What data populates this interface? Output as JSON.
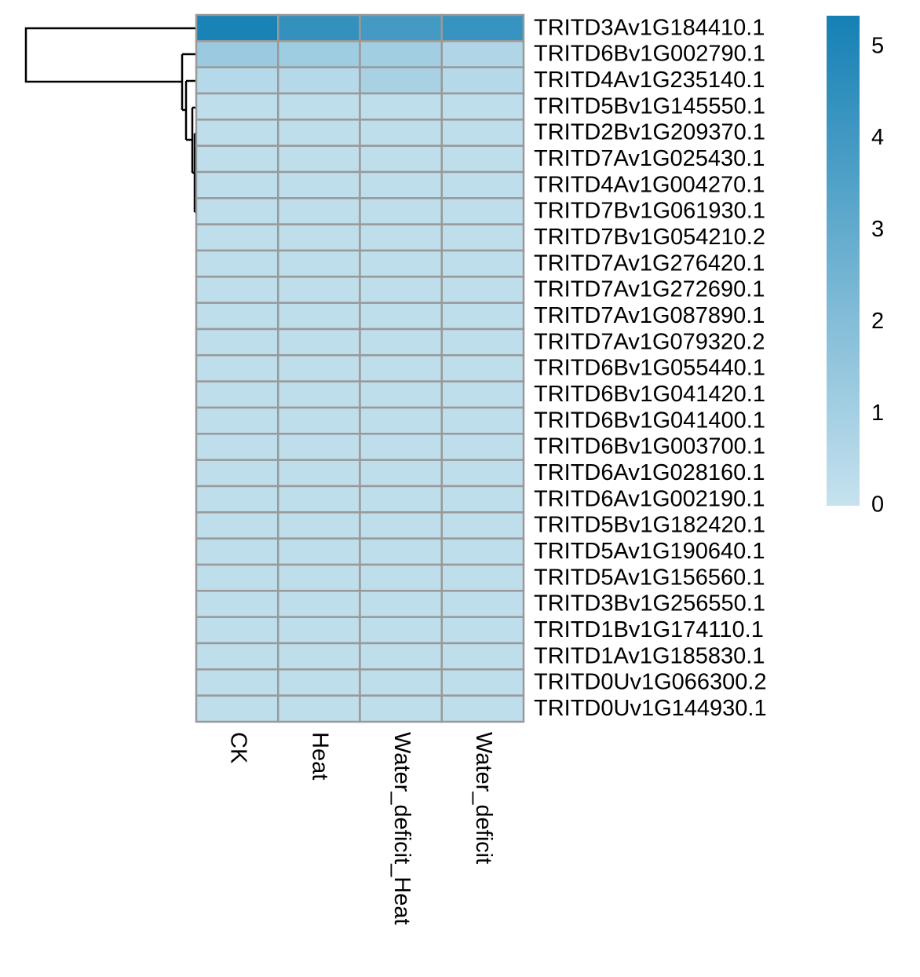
{
  "chart_data": {
    "type": "heatmap",
    "rows": [
      "TRITD3Av1G184410.1",
      "TRITD6Bv1G002790.1",
      "TRITD4Av1G235140.1",
      "TRITD5Bv1G145550.1",
      "TRITD2Bv1G209370.1",
      "TRITD7Av1G025430.1",
      "TRITD4Av1G004270.1",
      "TRITD7Bv1G061930.1",
      "TRITD7Bv1G054210.2",
      "TRITD7Av1G276420.1",
      "TRITD7Av1G272690.1",
      "TRITD7Av1G087890.1",
      "TRITD7Av1G079320.2",
      "TRITD6Bv1G055440.1",
      "TRITD6Bv1G041420.1",
      "TRITD6Bv1G041400.1",
      "TRITD6Bv1G003700.1",
      "TRITD6Av1G028160.1",
      "TRITD6Av1G002190.1",
      "TRITD5Bv1G182420.1",
      "TRITD5Av1G190640.1",
      "TRITD5Av1G156560.1",
      "TRITD3Bv1G256550.1",
      "TRITD1Bv1G174110.1",
      "TRITD1Av1G185830.1",
      "TRITD0Uv1G066300.2",
      "TRITD0Uv1G144930.1"
    ],
    "columns": [
      "CK",
      "Heat",
      "Water_deficit_Heat",
      "Water_deficit"
    ],
    "values": [
      [
        5.2,
        4.4,
        3.9,
        4.3
      ],
      [
        1.3,
        1.2,
        1.1,
        0.7
      ],
      [
        0.5,
        0.5,
        0.9,
        0.5
      ],
      [
        0.2,
        0.2,
        0.2,
        0.2
      ],
      [
        0.2,
        0.2,
        0.2,
        0.2
      ],
      [
        0.2,
        0.2,
        0.2,
        0.2
      ],
      [
        0.2,
        0.2,
        0.2,
        0.2
      ],
      [
        0.2,
        0.2,
        0.2,
        0.2
      ],
      [
        0.2,
        0.2,
        0.2,
        0.2
      ],
      [
        0.2,
        0.2,
        0.2,
        0.2
      ],
      [
        0.2,
        0.2,
        0.2,
        0.2
      ],
      [
        0.2,
        0.2,
        0.2,
        0.2
      ],
      [
        0.2,
        0.2,
        0.2,
        0.2
      ],
      [
        0.2,
        0.2,
        0.2,
        0.2
      ],
      [
        0.2,
        0.2,
        0.2,
        0.2
      ],
      [
        0.2,
        0.2,
        0.2,
        0.2
      ],
      [
        0.2,
        0.2,
        0.2,
        0.2
      ],
      [
        0.2,
        0.2,
        0.2,
        0.2
      ],
      [
        0.2,
        0.2,
        0.2,
        0.2
      ],
      [
        0.2,
        0.2,
        0.2,
        0.2
      ],
      [
        0.2,
        0.2,
        0.2,
        0.2
      ],
      [
        0.2,
        0.2,
        0.2,
        0.2
      ],
      [
        0.2,
        0.2,
        0.2,
        0.2
      ],
      [
        0.2,
        0.2,
        0.2,
        0.2
      ],
      [
        0.2,
        0.2,
        0.2,
        0.2
      ],
      [
        0.2,
        0.2,
        0.2,
        0.2
      ],
      [
        0.2,
        0.2,
        0.2,
        0.2
      ]
    ],
    "colors": [
      "#c6e2ee",
      "#1580b4"
    ],
    "zlim": [
      0,
      5.34
    ],
    "zticks": [
      0,
      1,
      2,
      3,
      4,
      5
    ]
  }
}
